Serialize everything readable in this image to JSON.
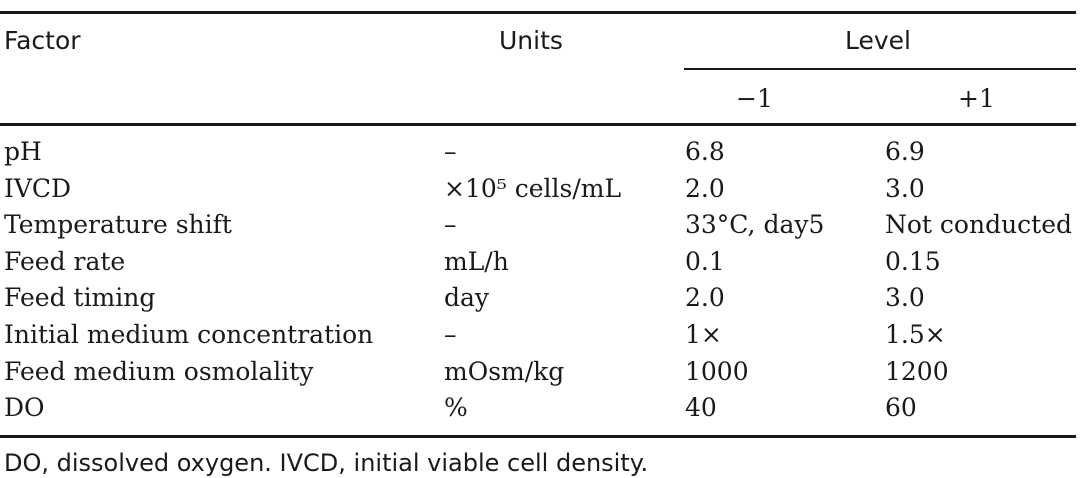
{
  "table": {
    "headers": {
      "factor": "Factor",
      "units": "Units",
      "level": "Level",
      "level_low": "−1",
      "level_high": "+1"
    },
    "rows": [
      {
        "factor": "pH",
        "units": "–",
        "low": "6.8",
        "high": "6.9"
      },
      {
        "factor": "IVCD",
        "units": "×10⁵ cells/mL",
        "low": "2.0",
        "high": "3.0"
      },
      {
        "factor": "Temperature shift",
        "units": "–",
        "low": "33°C, day5",
        "high": "Not conducted"
      },
      {
        "factor": "Feed rate",
        "units": "mL/h",
        "low": "0.1",
        "high": "0.15"
      },
      {
        "factor": "Feed timing",
        "units": "day",
        "low": "2.0",
        "high": "3.0"
      },
      {
        "factor": "Initial medium concentration",
        "units": "–",
        "low": "1×",
        "high": "1.5×"
      },
      {
        "factor": "Feed medium osmolality",
        "units": "mOsm/kg",
        "low": "1000",
        "high": "1200"
      },
      {
        "factor": "DO",
        "units": "%",
        "low": "40",
        "high": "60"
      }
    ],
    "footnote": "DO, dissolved oxygen. IVCD, initial viable cell density."
  }
}
